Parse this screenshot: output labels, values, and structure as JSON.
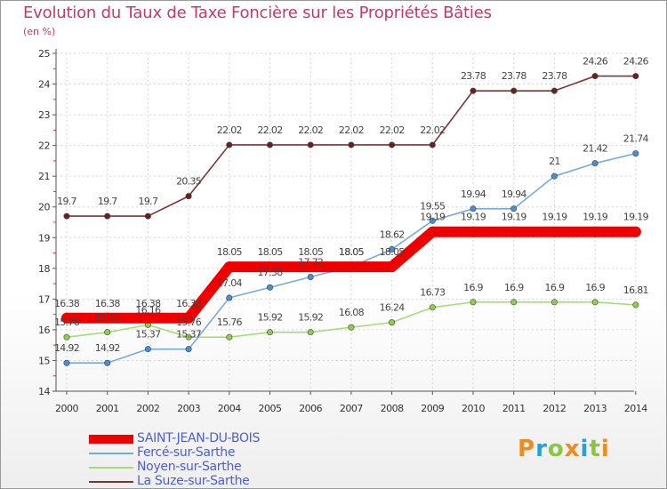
{
  "header": {
    "title": "Evolution du Taux de Taxe Foncière sur les Propriétés Bâties",
    "unit": "(en %)"
  },
  "logo": {
    "text": "Proxiti",
    "colors": [
      "#f08b1e",
      "#2aa0d8",
      "#8cc63f",
      "#f08b1e",
      "#2aa0d8",
      "#8cc63f",
      "#f08b1e"
    ]
  },
  "chart_data": {
    "type": "line",
    "title": "Evolution du Taux de Taxe Foncière sur les Propriétés Bâties",
    "ylabel": "(en %)",
    "xlabel": "",
    "x": [
      "2000",
      "2001",
      "2002",
      "2003",
      "2004",
      "2005",
      "2006",
      "2007",
      "2008",
      "2009",
      "2010",
      "2011",
      "2012",
      "2013",
      "2014"
    ],
    "ylim": [
      14,
      25
    ],
    "yticks": [
      "14",
      "15",
      "16",
      "17",
      "18",
      "19",
      "20",
      "21",
      "22",
      "23",
      "24",
      "25"
    ],
    "grid": true,
    "legend_position": "bottom-left",
    "series": [
      {
        "name": "SAINT-JEAN-DU-BOIS",
        "color": "#ee0000",
        "marker": "#ee0000",
        "emphasis": true,
        "values": [
          16.38,
          16.38,
          16.38,
          16.38,
          18.05,
          18.05,
          18.05,
          18.05,
          18.05,
          19.19,
          19.19,
          19.19,
          19.19,
          19.19,
          19.19
        ],
        "labels": [
          "16.38",
          "16.38",
          "16.38",
          "16.38",
          "18.05",
          "18.05",
          "18.05",
          "18.05",
          "18.05",
          "19.19",
          "19.19",
          "19.19",
          "19.19",
          "19.19",
          "19.19"
        ]
      },
      {
        "name": "Fercé-sur-Sarthe",
        "color": "#77aadd",
        "marker": "#4a90d0",
        "values": [
          14.92,
          14.92,
          15.37,
          15.37,
          17.04,
          17.38,
          17.72,
          18.05,
          18.62,
          19.55,
          19.94,
          19.94,
          21.0,
          21.42,
          21.74
        ],
        "labels": [
          "14.92",
          "14.92",
          "15.37",
          "15.37",
          "17.04",
          "17.38",
          "17.72",
          "18.05",
          "18.62",
          "19.55",
          "19.94",
          "19.94",
          "21",
          "21.42",
          "21.74"
        ]
      },
      {
        "name": "Noyen-sur-Sarthe",
        "color": "#a6dd77",
        "marker": "#8cd04a",
        "values": [
          15.76,
          15.92,
          16.16,
          15.76,
          15.76,
          15.92,
          15.92,
          16.08,
          16.24,
          16.73,
          16.9,
          16.9,
          16.9,
          16.9,
          16.81
        ],
        "labels": [
          "15.76",
          "15.92",
          "16.16",
          "15.76",
          "15.76",
          "15.92",
          "15.92",
          "16.08",
          "16.24",
          "16.73",
          "16.9",
          "16.9",
          "16.9",
          "16.9",
          "16.81"
        ]
      },
      {
        "name": "La Suze-sur-Sarthe",
        "color": "#7a3535",
        "marker": "#6a2020",
        "values": [
          19.7,
          19.7,
          19.7,
          20.35,
          22.02,
          22.02,
          22.02,
          22.02,
          22.02,
          22.02,
          23.78,
          23.78,
          23.78,
          24.26,
          24.26
        ],
        "labels": [
          "19.7",
          "19.7",
          "19.7",
          "20.35",
          "22.02",
          "22.02",
          "22.02",
          "22.02",
          "22.02",
          "22.02",
          "23.78",
          "23.78",
          "23.78",
          "24.26",
          "24.26"
        ]
      }
    ]
  }
}
